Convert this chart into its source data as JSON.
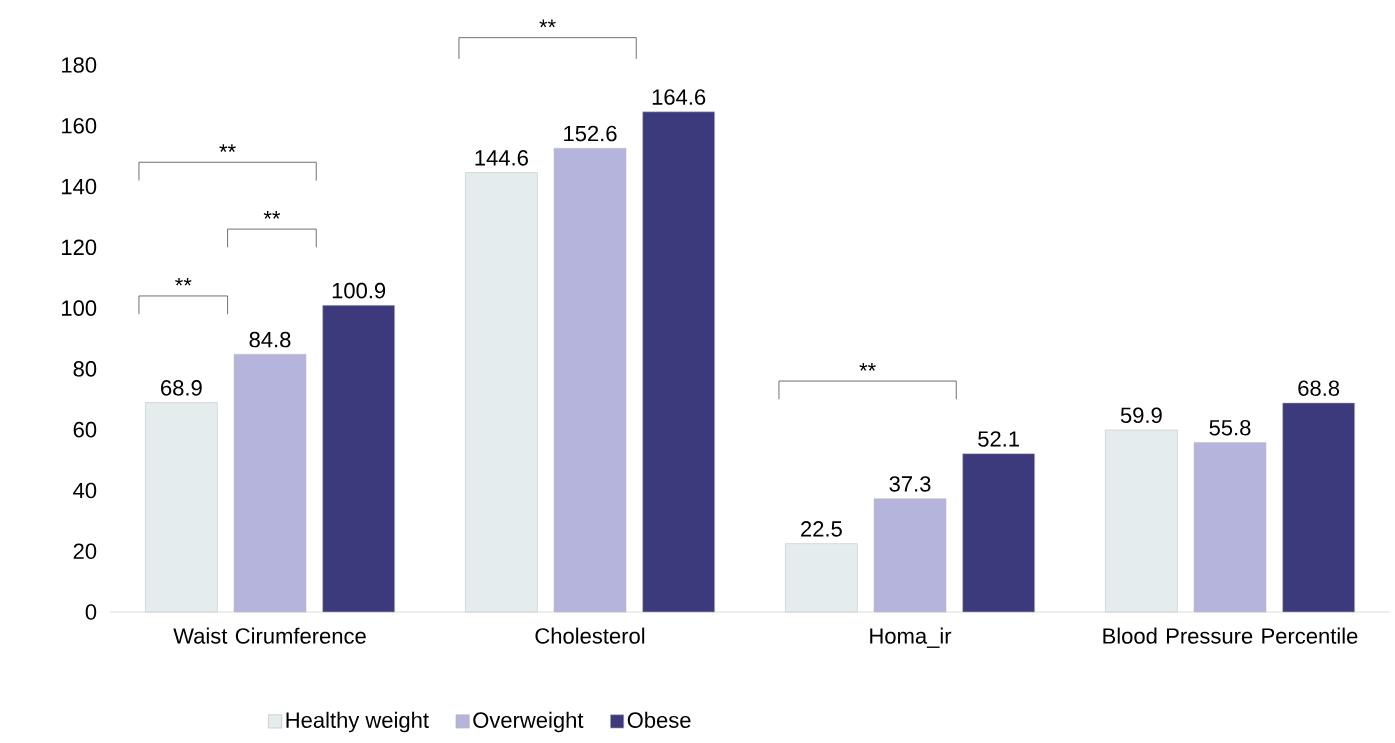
{
  "chart_data": {
    "type": "bar",
    "categories": [
      "Waist Cirumference",
      "Cholesterol",
      "Homa_ir",
      "Blood Pressure Percentile"
    ],
    "series": [
      {
        "name": "Healthy weight",
        "color": "#e4ecee",
        "values": [
          68.9,
          144.6,
          22.5,
          59.9
        ]
      },
      {
        "name": "Overweight",
        "color": "#b4b4dc",
        "values": [
          84.8,
          152.6,
          37.3,
          55.8
        ]
      },
      {
        "name": "Obese",
        "color": "#3c3a7c",
        "values": [
          100.9,
          164.6,
          52.1,
          68.8
        ]
      }
    ],
    "ylim": [
      0,
      180
    ],
    "yticks": [
      0,
      20,
      40,
      60,
      80,
      100,
      120,
      140,
      160,
      180
    ],
    "data_labels": true,
    "grid": false,
    "legend": "bottom",
    "annotations": [
      "**",
      "**",
      "**",
      "**",
      "**"
    ]
  }
}
